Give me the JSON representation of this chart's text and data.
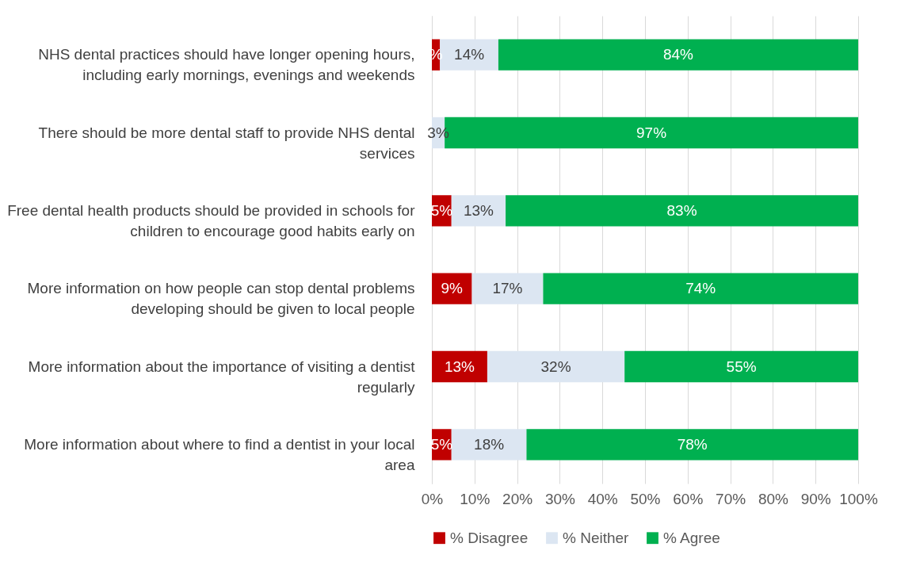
{
  "chart_data": {
    "type": "bar",
    "orientation": "horizontal",
    "stacked": true,
    "categories": [
      "NHS dental practices should have longer opening hours, including early mornings, evenings and weekends",
      "There should be more dental staff to provide NHS dental services",
      "Free dental health products should be provided in schools for children to encourage good habits early on",
      "More information on how people can stop dental problems developing  should be given to local people",
      "More information about the importance of visiting a dentist regularly",
      "More information about where to find a dentist in your local area"
    ],
    "series": [
      {
        "name": "% Disagree",
        "color": "#c00000",
        "values": [
          1.9,
          0,
          4.6,
          9.4,
          13.0,
          4.6
        ],
        "value_labels": [
          "%",
          null,
          "5%",
          "9%",
          "13%",
          "5%"
        ]
      },
      {
        "name": "% Neither",
        "color": "#dce6f2",
        "values": [
          13.7,
          3.0,
          12.7,
          16.7,
          32.2,
          17.6
        ],
        "value_labels": [
          "14%",
          "3%",
          "13%",
          "17%",
          "32%",
          "18%"
        ]
      },
      {
        "name": "% Agree",
        "color": "#00b050",
        "values": [
          84.4,
          97.0,
          82.7,
          73.9,
          54.8,
          77.8
        ],
        "value_labels": [
          "84%",
          "97%",
          "83%",
          "74%",
          "55%",
          "78%"
        ]
      }
    ],
    "xlim": [
      0,
      100
    ],
    "xticks": [
      {
        "value": 0,
        "label": "0%"
      },
      {
        "value": 10,
        "label": "10%"
      },
      {
        "value": 20,
        "label": "20%"
      },
      {
        "value": 30,
        "label": "30%"
      },
      {
        "value": 40,
        "label": "40%"
      },
      {
        "value": 50,
        "label": "50%"
      },
      {
        "value": 60,
        "label": "60%"
      },
      {
        "value": 70,
        "label": "70%"
      },
      {
        "value": 80,
        "label": "80%"
      },
      {
        "value": 90,
        "label": "90%"
      },
      {
        "value": 100,
        "label": "100%"
      }
    ],
    "grid": "x",
    "legend": "bottom"
  }
}
